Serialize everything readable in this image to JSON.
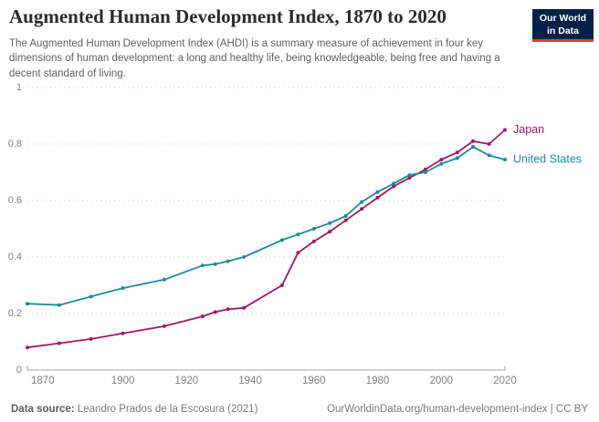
{
  "header": {
    "title": "Augmented Human Development Index, 1870 to 2020",
    "subtitle": "The Augmented Human Development Index (AHDI) is a summary measure of achievement in four key dimensions of human development: a long and healthy life, being knowledgeable, being free and having a decent standard of living."
  },
  "logo": {
    "line1": "Our World",
    "line2": "in Data",
    "bg_color": "#002147",
    "accent_color": "#e63e36"
  },
  "chart_data": {
    "type": "line",
    "title": "Augmented Human Development Index, 1870 to 2020",
    "x": [
      1870,
      1880,
      1890,
      1900,
      1913,
      1925,
      1929,
      1933,
      1938,
      1950,
      1955,
      1960,
      1965,
      1970,
      1975,
      1980,
      1985,
      1990,
      1995,
      2000,
      2005,
      2010,
      2015,
      2020
    ],
    "series": [
      {
        "name": "Japan",
        "color": "#a21a5b",
        "values": [
          0.08,
          0.095,
          0.11,
          0.13,
          0.155,
          0.19,
          0.205,
          0.215,
          0.22,
          0.3,
          0.415,
          0.455,
          0.49,
          0.53,
          0.57,
          0.61,
          0.65,
          0.68,
          0.71,
          0.745,
          0.77,
          0.81,
          0.8,
          0.85
        ]
      },
      {
        "name": "United States",
        "color": "#1f8a99",
        "values": [
          0.235,
          0.23,
          0.26,
          0.29,
          0.32,
          0.37,
          0.375,
          0.385,
          0.4,
          0.46,
          0.48,
          0.5,
          0.52,
          0.545,
          0.595,
          0.63,
          0.66,
          0.69,
          0.7,
          0.73,
          0.75,
          0.79,
          0.76,
          0.745
        ]
      }
    ],
    "xlabel": "",
    "ylabel": "",
    "xlim": [
      1870,
      2020
    ],
    "ylim": [
      0,
      1
    ],
    "xticks": [
      1870,
      1900,
      1920,
      1940,
      1960,
      1980,
      2000,
      2020
    ],
    "ytick_labels": [
      "0",
      "0.2",
      "0.4",
      "0.6",
      "0.8",
      "1"
    ],
    "yticks": [
      0,
      0.2,
      0.4,
      0.6,
      0.8,
      1
    ],
    "grid": "horizontal dashed",
    "legend_position": "end-of-line labels",
    "grid_color": "#e0e0e0",
    "axis_color": "#a3a3a3",
    "tick_label_color": "#808080"
  },
  "footer": {
    "source_label": "Data source:",
    "source_text": " Leandro Prados de la Escosura (2021)",
    "credit": "OurWorldinData.org/human-development-index | CC BY"
  }
}
